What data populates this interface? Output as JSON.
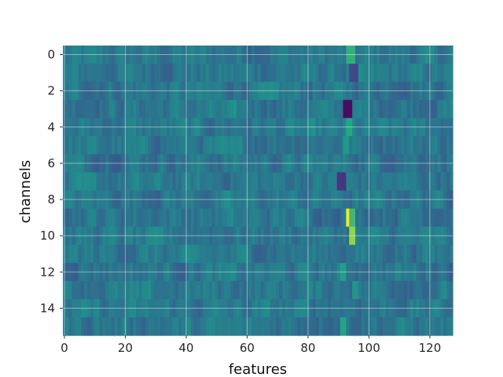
{
  "chart_data": {
    "type": "heatmap",
    "title": "",
    "xlabel": "features",
    "ylabel": "channels",
    "xlim": [
      -0.5,
      127.5
    ],
    "ylim": [
      15.5,
      -0.5
    ],
    "rows": 16,
    "cols": 128,
    "x_ticks": [
      0,
      20,
      40,
      60,
      80,
      100,
      120
    ],
    "y_ticks": [
      0,
      2,
      4,
      6,
      8,
      10,
      12,
      14
    ],
    "grid": true,
    "colormap": "viridis",
    "value_range": [
      -1,
      1
    ],
    "baseline_value": 0,
    "description_of_values": "values are mostly near 0 (teal-blue); a vertical band of strong activity near features 91-96",
    "highlights": [
      {
        "channel": 0,
        "features": [
          93,
          94,
          95
        ],
        "value": 0.55
      },
      {
        "channel": 1,
        "features": [
          94,
          95,
          96
        ],
        "value": -0.45
      },
      {
        "channel": 3,
        "features": [
          92,
          93,
          94
        ],
        "value": -0.9
      },
      {
        "channel": 4,
        "features": [
          93,
          94
        ],
        "value": 0.5
      },
      {
        "channel": 5,
        "features": [
          92,
          93
        ],
        "value": 0.35
      },
      {
        "channel": 7,
        "features": [
          90,
          91,
          92
        ],
        "value": -0.6
      },
      {
        "channel": 9,
        "features": [
          93
        ],
        "value": 1.0
      },
      {
        "channel": 9,
        "features": [
          94,
          95
        ],
        "value": 0.6
      },
      {
        "channel": 10,
        "features": [
          94,
          95
        ],
        "value": 0.8
      },
      {
        "channel": 12,
        "features": [
          91,
          92
        ],
        "value": 0.4
      },
      {
        "channel": 13,
        "features": [
          95,
          96
        ],
        "value": 0.3
      },
      {
        "channel": 15,
        "features": [
          91,
          92
        ],
        "value": 0.45
      }
    ]
  }
}
